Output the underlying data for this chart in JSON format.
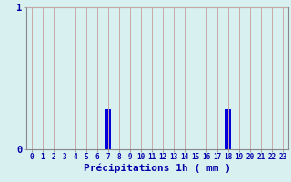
{
  "title": "",
  "xlabel": "Précipitations 1h ( mm )",
  "categories": [
    0,
    1,
    2,
    3,
    4,
    5,
    6,
    7,
    8,
    9,
    10,
    11,
    12,
    13,
    14,
    15,
    16,
    17,
    18,
    19,
    20,
    21,
    22,
    23
  ],
  "values": [
    0,
    0,
    0,
    0,
    0,
    0,
    0,
    0.28,
    0,
    0,
    0,
    0,
    0,
    0,
    0,
    0,
    0,
    0,
    0.28,
    0,
    0,
    0,
    0,
    0
  ],
  "bar_color": "#0000dd",
  "background_color": "#d8f0f0",
  "grid_color": "#c8a8a8",
  "yticks": [
    0,
    1
  ],
  "ylim": [
    0,
    1.0
  ],
  "xlim": [
    -0.5,
    23.5
  ],
  "tick_color": "#0000aa",
  "label_fontsize": 8,
  "tick_fontsize": 5.5
}
